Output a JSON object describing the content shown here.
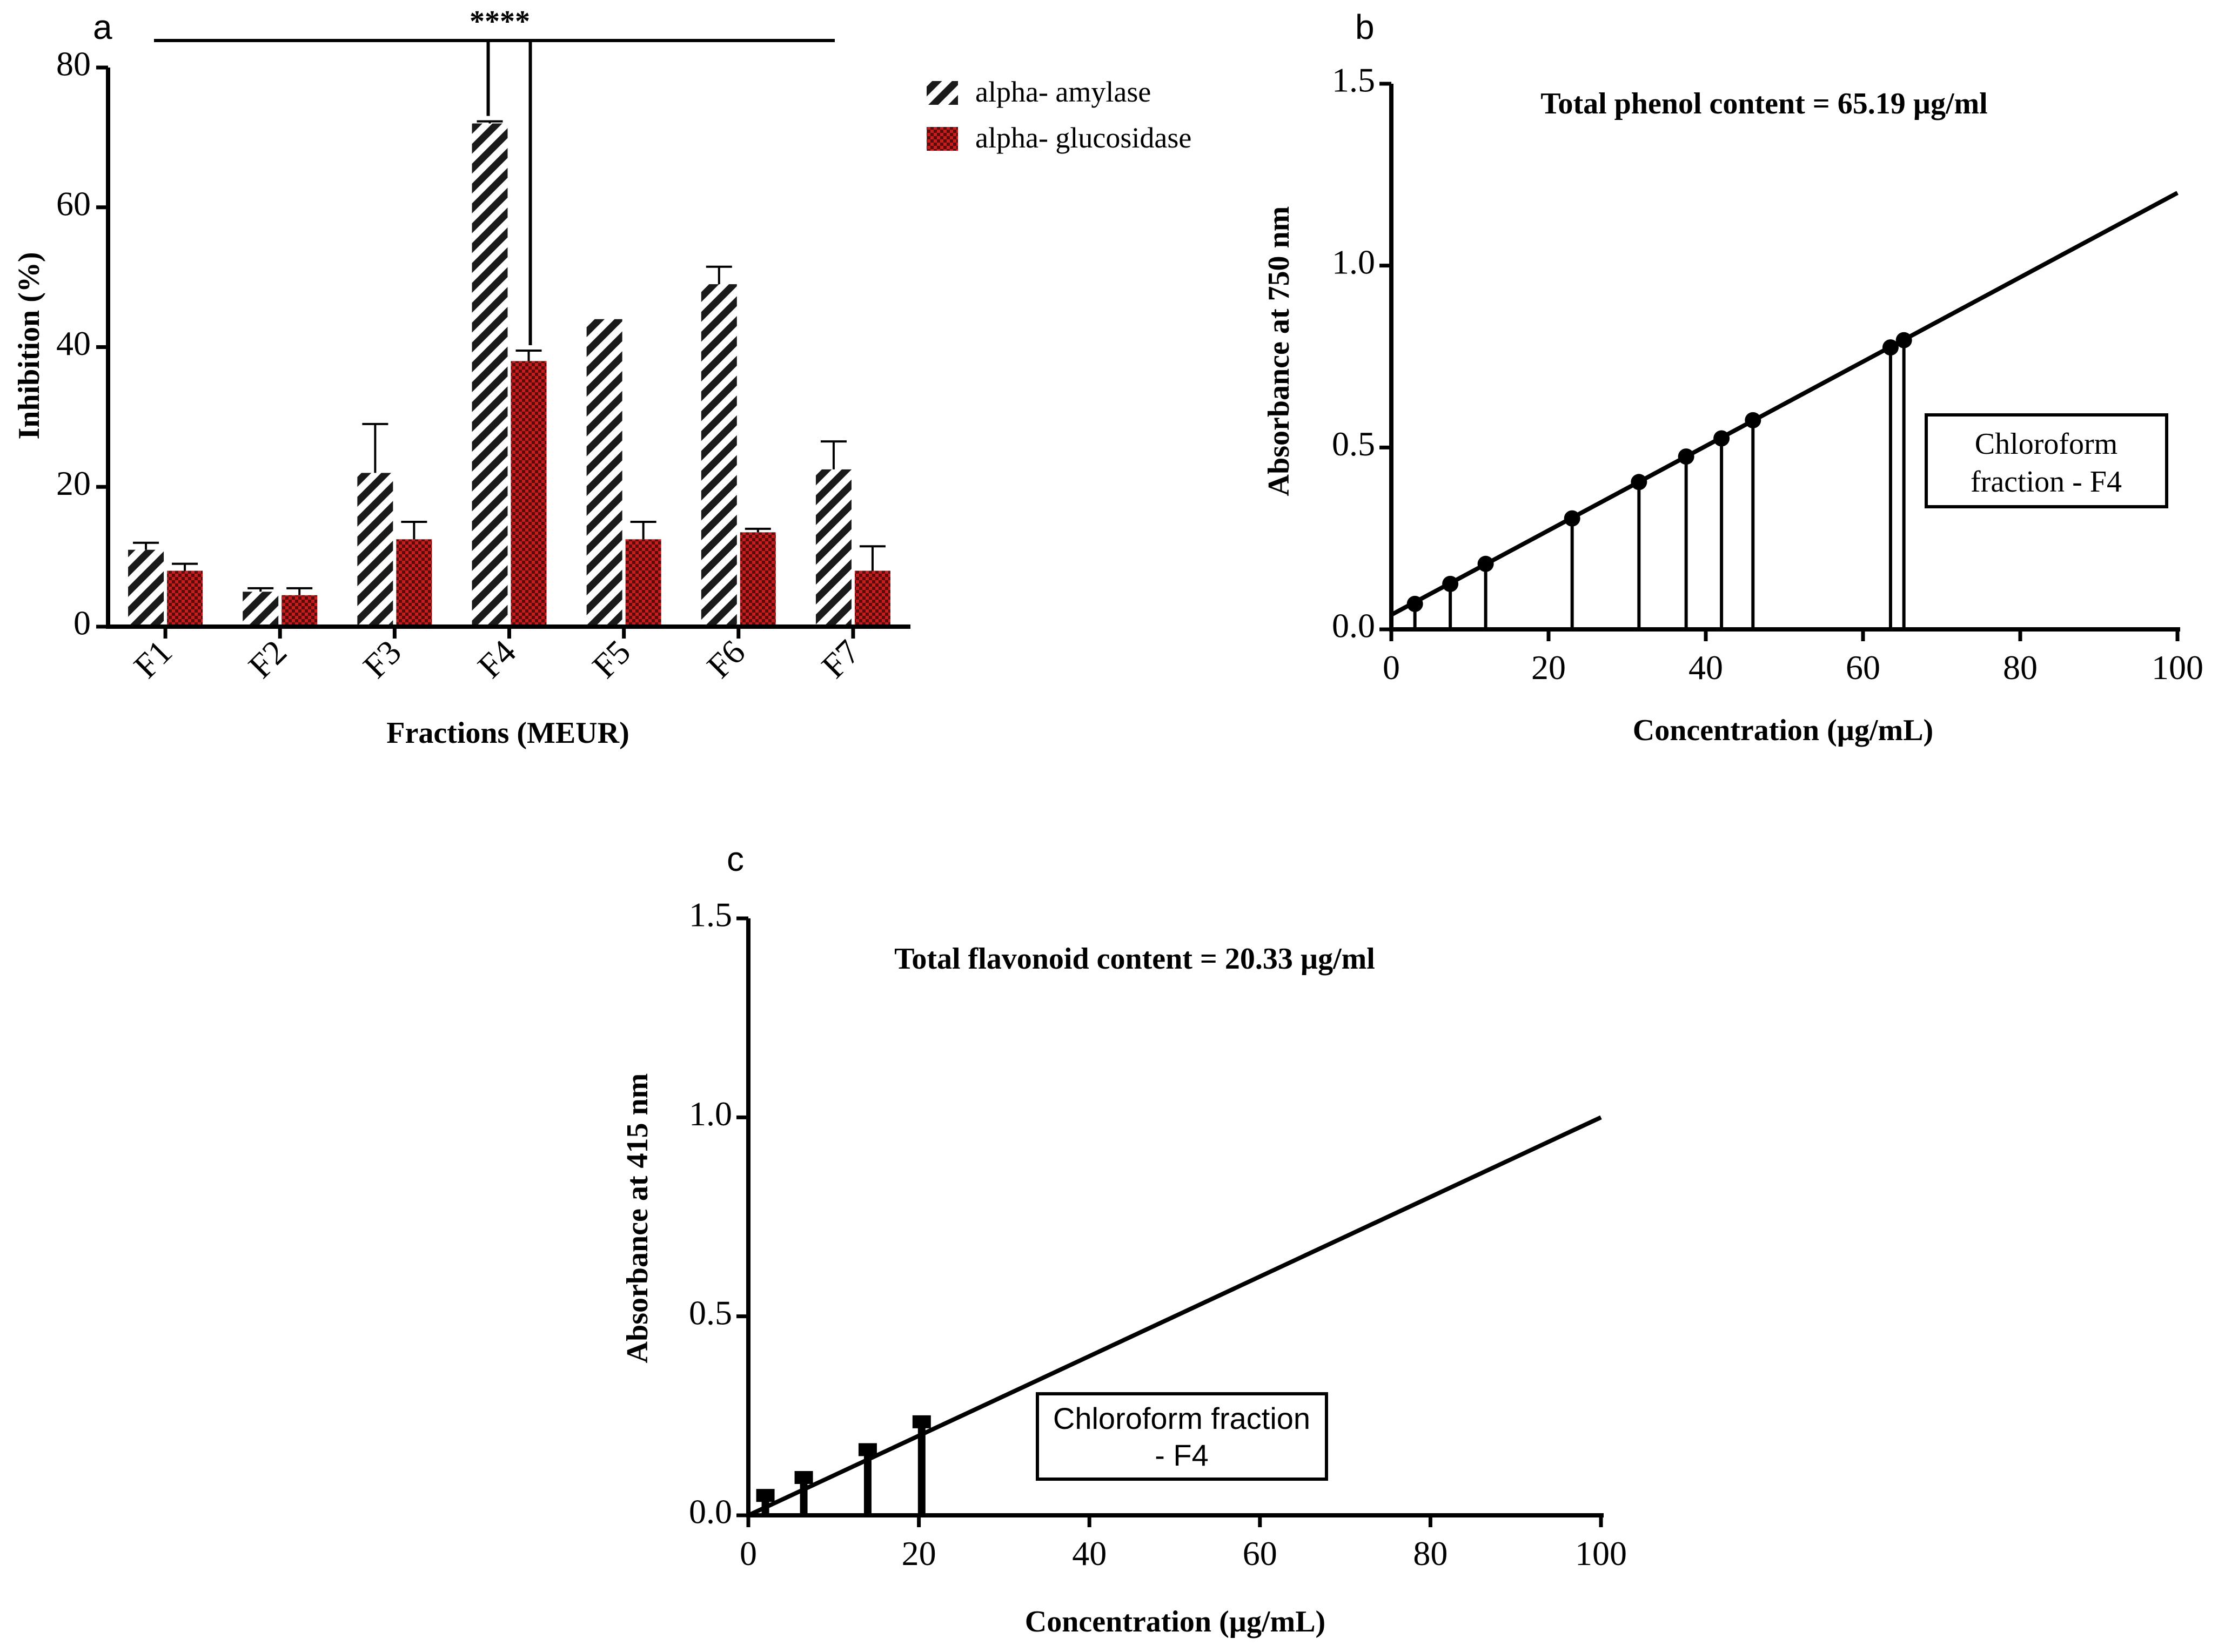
{
  "chart_data": [
    {
      "panel": "a",
      "type": "bar",
      "title": "",
      "xlabel": "Fractions (MEUR)",
      "ylabel": "Inhibition (%)",
      "ylim": [
        0,
        80
      ],
      "yticks": [
        "0",
        "20",
        "40",
        "60",
        "80"
      ],
      "categories": [
        "F1",
        "F2",
        "F3",
        "F4",
        "F5",
        "F6",
        "F7"
      ],
      "series": [
        {
          "name": "alpha- amylase",
          "values": [
            11,
            5,
            22,
            72,
            44,
            49,
            22.5
          ],
          "errors": [
            1,
            0.5,
            7,
            0.3,
            0,
            2.5,
            4
          ]
        },
        {
          "name": "alpha- glucosidase",
          "values": [
            8,
            4.5,
            12.5,
            38,
            12.5,
            13.5,
            8
          ],
          "errors": [
            1,
            1,
            2.5,
            1.5,
            2.5,
            0.5,
            3.5
          ]
        }
      ],
      "significance_label": "****",
      "legend_position": "top-right",
      "colors": {
        "amylase_stripe": "#1a1a1a",
        "glucosidase_fill": "#c41e1e",
        "glucosidase_check": "#5c0a0a"
      }
    },
    {
      "panel": "b",
      "type": "line",
      "xlabel": "Concentration (µg/mL)",
      "ylabel": "Absorbance at 750 nm",
      "xlim": [
        0,
        100
      ],
      "ylim": [
        0,
        1.5
      ],
      "xticks": [
        "0",
        "20",
        "40",
        "60",
        "80",
        "100"
      ],
      "yticks": [
        "0.0",
        "0.5",
        "1.0",
        "1.5"
      ],
      "annotation": "Total phenol content = 65.19 µg/ml",
      "box_lines": [
        "Chloroform",
        "fraction - F4"
      ],
      "fit_line": {
        "x": [
          0,
          100
        ],
        "y": [
          0.04,
          1.2
        ]
      },
      "points": {
        "x": [
          3,
          7.5,
          12,
          23,
          31.5,
          37.5,
          42,
          46,
          63.5,
          65.2
        ],
        "y": [
          0.07,
          0.125,
          0.18,
          0.305,
          0.405,
          0.475,
          0.525,
          0.575,
          0.775,
          0.795
        ]
      }
    },
    {
      "panel": "c",
      "type": "line",
      "xlabel": "Concentration (µg/mL)",
      "ylabel": "Absorbance at 415 nm",
      "xlim": [
        0,
        100
      ],
      "ylim": [
        0,
        1.5
      ],
      "xticks": [
        "0",
        "20",
        "40",
        "60",
        "80",
        "100"
      ],
      "yticks": [
        "0.0",
        "0.5",
        "1.0",
        "1.5"
      ],
      "annotation": "Total flavonoid content = 20.33 µg/ml",
      "box_lines": [
        "Chloroform fraction",
        "- F4"
      ],
      "fit_line": {
        "x": [
          0,
          100
        ],
        "y": [
          0.0,
          1.0
        ]
      },
      "points": {
        "x": [
          2,
          6.5,
          14,
          20.33
        ],
        "y": [
          0.05,
          0.095,
          0.165,
          0.235
        ]
      }
    }
  ]
}
